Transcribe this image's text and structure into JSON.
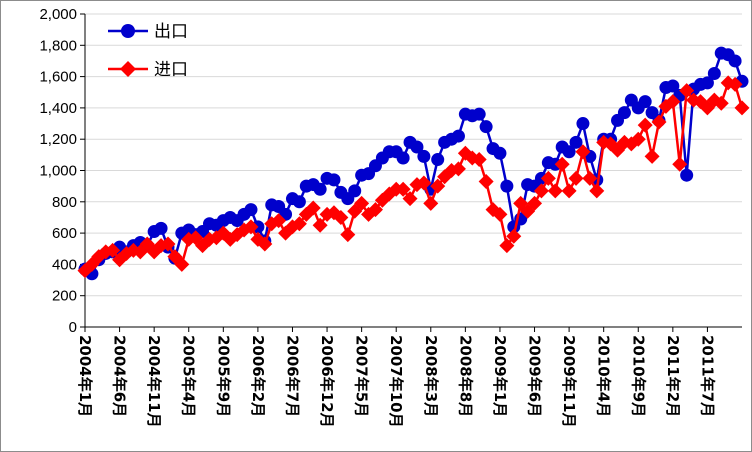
{
  "chart_data": {
    "type": "line",
    "title": "",
    "xlabel": "",
    "ylabel": "",
    "ylim": [
      0,
      2000
    ],
    "y_ticks": [
      "0",
      "200",
      "400",
      "600",
      "800",
      "1,000",
      "1,200",
      "1,400",
      "1,600",
      "1,800",
      "2,000"
    ],
    "y_tick_values": [
      0,
      200,
      400,
      600,
      800,
      1000,
      1200,
      1400,
      1600,
      1800,
      2000
    ],
    "x_tick_labels": [
      "2004年1月",
      "2004年6月",
      "2004年11月",
      "2005年4月",
      "2005年9月",
      "2006年2月",
      "2006年7月",
      "2006年12月",
      "2007年5月",
      "2007年10月",
      "2008年3月",
      "2008年8月",
      "2009年1月",
      "2009年6月",
      "2009年11月",
      "2010年4月",
      "2010年9月",
      "2011年2月",
      "2011年7月"
    ],
    "x_tick_index": [
      0,
      5,
      10,
      15,
      20,
      25,
      30,
      35,
      40,
      45,
      50,
      55,
      60,
      65,
      70,
      75,
      80,
      85,
      90
    ],
    "grid": "horizontal",
    "legend_position": "top-left",
    "series": [
      {
        "name": "出口",
        "color": "#0000cc",
        "marker": "circle",
        "values": [
          370,
          340,
          430,
          470,
          480,
          510,
          480,
          520,
          540,
          520,
          610,
          630,
          510,
          440,
          600,
          620,
          590,
          610,
          660,
          650,
          680,
          700,
          680,
          720,
          750,
          640,
          550,
          780,
          770,
          720,
          820,
          800,
          900,
          910,
          880,
          950,
          940,
          860,
          820,
          870,
          970,
          980,
          1030,
          1080,
          1120,
          1120,
          1080,
          1180,
          1150,
          1090,
          880,
          1070,
          1180,
          1200,
          1220,
          1360,
          1350,
          1360,
          1280,
          1140,
          1110,
          900,
          640,
          690,
          910,
          900,
          950,
          1050,
          1040,
          1150,
          1120,
          1180,
          1300,
          1090,
          940,
          1200,
          1200,
          1320,
          1370,
          1450,
          1400,
          1440,
          1370,
          1320,
          1530,
          1540,
          1480,
          970,
          1520,
          1550,
          1560,
          1620,
          1750,
          1740,
          1700,
          1570
        ]
      },
      {
        "name": "进口",
        "color": "#ff0000",
        "marker": "diamond",
        "values": [
          360,
          400,
          450,
          480,
          490,
          430,
          470,
          490,
          480,
          530,
          480,
          520,
          530,
          450,
          400,
          560,
          570,
          520,
          560,
          570,
          600,
          560,
          590,
          620,
          640,
          560,
          530,
          660,
          680,
          600,
          640,
          660,
          720,
          760,
          650,
          720,
          730,
          700,
          590,
          740,
          790,
          720,
          750,
          810,
          850,
          880,
          880,
          820,
          910,
          920,
          790,
          900,
          960,
          1000,
          1010,
          1110,
          1080,
          1070,
          930,
          750,
          720,
          520,
          580,
          790,
          740,
          790,
          870,
          950,
          870,
          1040,
          870,
          950,
          1120,
          950,
          870,
          1180,
          1170,
          1130,
          1180,
          1170,
          1200,
          1290,
          1090,
          1310,
          1410,
          1440,
          1040,
          1510,
          1450,
          1440,
          1400,
          1450,
          1430,
          1560,
          1550,
          1400
        ]
      }
    ]
  }
}
